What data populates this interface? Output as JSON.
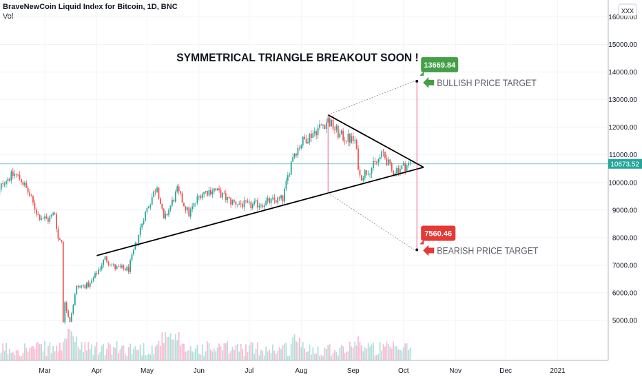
{
  "header": {
    "symbol_line": "BraveNewCoin Liquid Index for Bitcoin, 1D, BNC",
    "volume_label": "Vol",
    "corner_badge": "XXX"
  },
  "colors": {
    "up": "#26a69a",
    "down": "#ef5350",
    "vol_up": "#b2dfdb",
    "vol_down": "#f8bbd0",
    "grid": "#f0f3fa",
    "price_line": "#26a69a",
    "bull": "#43a047",
    "bear": "#e53935",
    "magenta": "#e91e63"
  },
  "chart_data": {
    "type": "candlestick",
    "title": "SYMMETRICAL TRIANGLE BREAKOUT SOON !",
    "x_ticks": [
      "Mar",
      "Apr",
      "May",
      "Jun",
      "Jul",
      "Aug",
      "Sep",
      "Oct",
      "Nov",
      "Dec",
      "2021"
    ],
    "y_ticks": [
      "5000.00",
      "6000.00",
      "7000.00",
      "8000.00",
      "9000.00",
      "10000.00",
      "11000.00",
      "12000.00",
      "13000.00",
      "14000.00",
      "15000.00",
      "16000.00"
    ],
    "ylim": [
      4100,
      16400
    ],
    "last_price": "10673.52",
    "bullish_target": {
      "value": "13669.84",
      "label": "BULLISH PRICE TARGET"
    },
    "bearish_target": {
      "value": "7560.46",
      "label": "BEARISH PRICE TARGET"
    },
    "price_anchors": [
      [
        "2020-02-01",
        9300
      ],
      [
        "2020-02-05",
        10050
      ],
      [
        "2020-02-12",
        10300
      ],
      [
        "2020-02-16",
        10100
      ],
      [
        "2020-02-20",
        9650
      ],
      [
        "2020-02-26",
        8800
      ],
      [
        "2020-03-03",
        8650
      ],
      [
        "2020-03-07",
        8900
      ],
      [
        "2020-03-09",
        7950
      ],
      [
        "2020-03-11",
        7900
      ],
      [
        "2020-03-12",
        5000
      ],
      [
        "2020-03-13",
        5600
      ],
      [
        "2020-03-16",
        5000
      ],
      [
        "2020-03-20",
        6200
      ],
      [
        "2020-03-28",
        6300
      ],
      [
        "2020-04-06",
        7250
      ],
      [
        "2020-04-12",
        6900
      ],
      [
        "2020-04-20",
        6850
      ],
      [
        "2020-04-29",
        8750
      ],
      [
        "2020-05-07",
        9900
      ],
      [
        "2020-05-11",
        8600
      ],
      [
        "2020-05-19",
        9700
      ],
      [
        "2020-05-26",
        8850
      ],
      [
        "2020-06-02",
        9600
      ],
      [
        "2020-06-10",
        9750
      ],
      [
        "2020-06-20",
        9300
      ],
      [
        "2020-07-01",
        9150
      ],
      [
        "2020-07-21",
        9400
      ],
      [
        "2020-07-27",
        11000
      ],
      [
        "2020-08-02",
        11500
      ],
      [
        "2020-08-17",
        12250
      ],
      [
        "2020-08-24",
        11700
      ],
      [
        "2020-09-02",
        11500
      ],
      [
        "2020-09-05",
        10200
      ],
      [
        "2020-09-14",
        10650
      ],
      [
        "2020-09-19",
        11050
      ],
      [
        "2020-09-24",
        10400
      ],
      [
        "2020-10-05",
        10673
      ]
    ],
    "triangle": {
      "upper": [
        [
          "2020-08-17",
          12450
        ],
        [
          "2020-10-13",
          10550
        ]
      ],
      "lower": [
        [
          "2020-04-01",
          7350
        ],
        [
          "2020-10-13",
          10550
        ]
      ]
    }
  }
}
